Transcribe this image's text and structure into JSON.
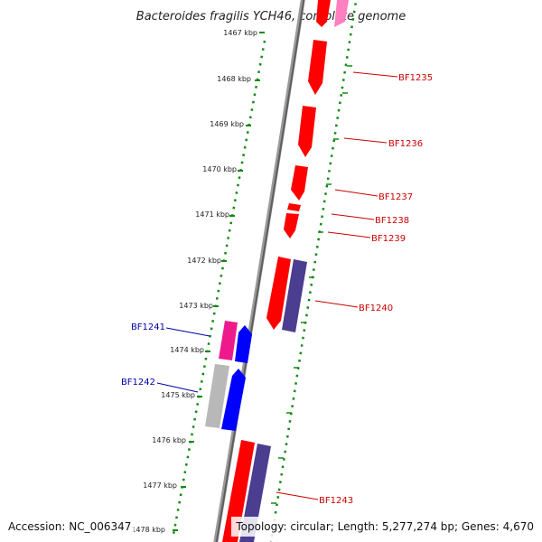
{
  "title": "Bacteroides fragilis YCH46, complete genome",
  "accession": "Accession: NC_006347",
  "summary": "Topology: circular; Length: 5,277,274 bp; Genes: 4,670",
  "ruler_labels": [
    "1467 kbp",
    "1468 kbp",
    "1469 kbp",
    "1470 kbp",
    "1471 kbp",
    "1472 kbp",
    "1473 kbp",
    "1474 kbp",
    "1475 kbp",
    "1476 kbp",
    "1477 kbp",
    "1478 kbp"
  ],
  "gene_labels": [
    {
      "text": "BF1235",
      "strand": "plus"
    },
    {
      "text": "BF1236",
      "strand": "plus"
    },
    {
      "text": "BF1237",
      "strand": "plus"
    },
    {
      "text": "BF1238",
      "strand": "plus"
    },
    {
      "text": "BF1239",
      "strand": "plus"
    },
    {
      "text": "BF1240",
      "strand": "plus"
    },
    {
      "text": "BF1241",
      "strand": "minus"
    },
    {
      "text": "BF1242",
      "strand": "minus"
    },
    {
      "text": "BF1243",
      "strand": "plus"
    }
  ],
  "colors": {
    "plus_label": "#cc0000",
    "minus_label": "#0000aa",
    "cds_red": "#ff0000",
    "cds_navy": "#4b3d8f",
    "cds_pink": "#ee1a8c",
    "cds_blue": "#0000ff",
    "cds_gray": "#b8b8b8",
    "ruler_dots": "#138a13",
    "backbone": "#7a7a7a"
  }
}
